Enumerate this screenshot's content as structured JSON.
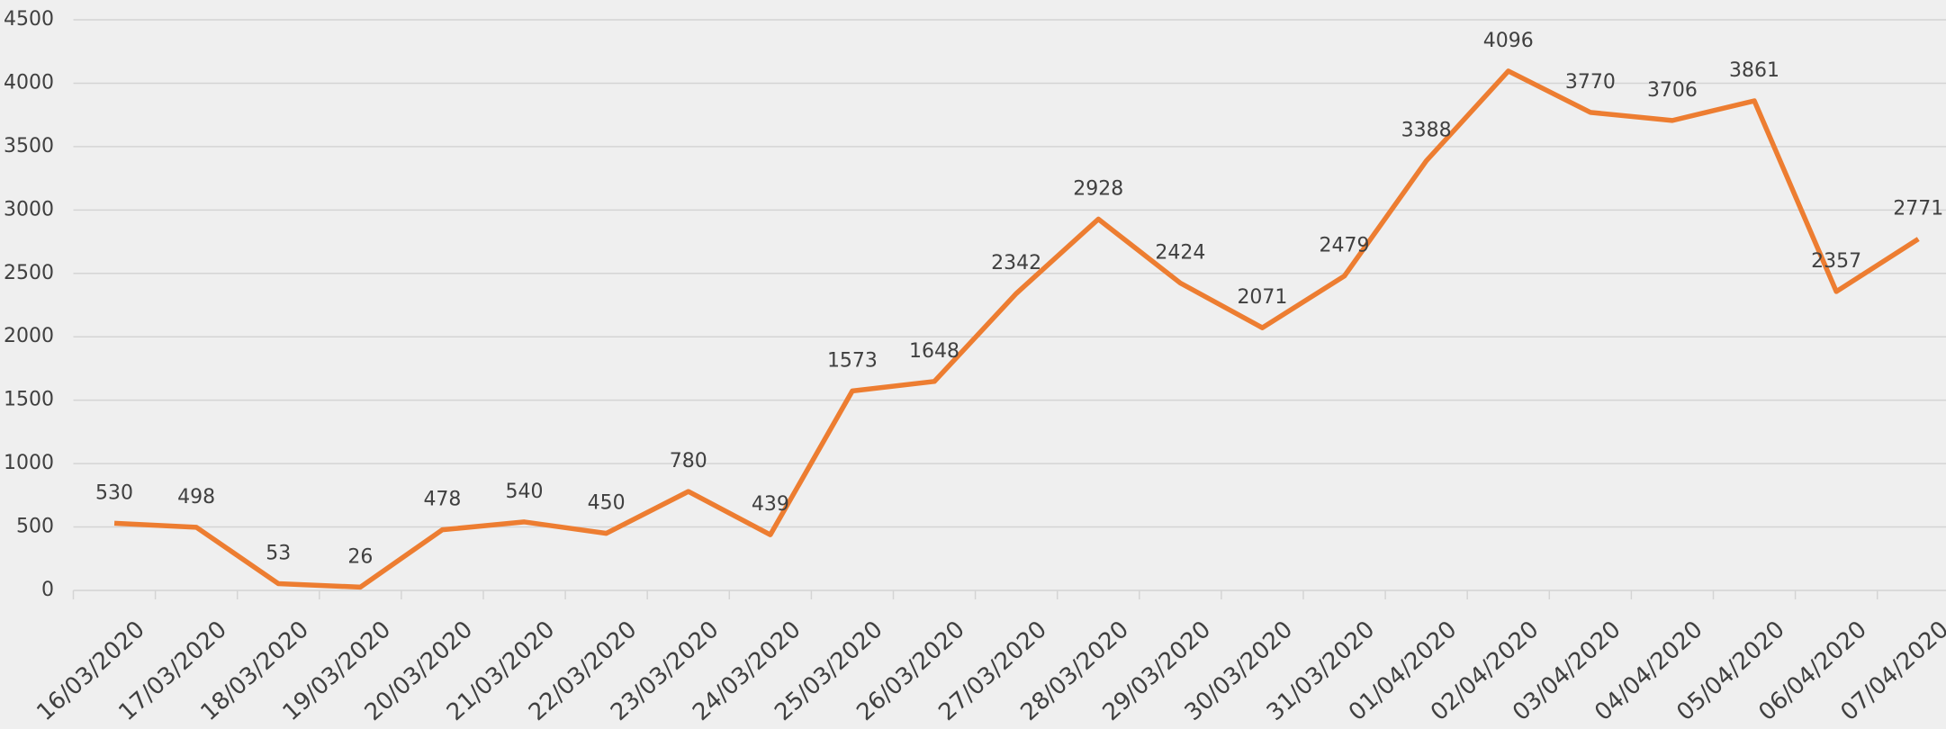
{
  "chart_data": {
    "type": "line",
    "categories": [
      "16/03/2020",
      "17/03/2020",
      "18/03/2020",
      "19/03/2020",
      "20/03/2020",
      "21/03/2020",
      "22/03/2020",
      "23/03/2020",
      "24/03/2020",
      "25/03/2020",
      "26/03/2020",
      "27/03/2020",
      "28/03/2020",
      "29/03/2020",
      "30/03/2020",
      "31/03/2020",
      "01/04/2020",
      "02/04/2020",
      "03/04/2020",
      "04/04/2020",
      "05/04/2020",
      "06/04/2020",
      "07/04/2020"
    ],
    "values": [
      530,
      498,
      53,
      26,
      478,
      540,
      450,
      780,
      439,
      1573,
      1648,
      2342,
      2928,
      2424,
      2071,
      2479,
      3388,
      4096,
      3770,
      3706,
      3861,
      2357,
      2771
    ],
    "color": "#ed7d31",
    "ylim": [
      0,
      4500
    ],
    "yticks": [
      0,
      500,
      1000,
      1500,
      2000,
      2500,
      3000,
      3500,
      4000,
      4500
    ],
    "grid": true
  }
}
